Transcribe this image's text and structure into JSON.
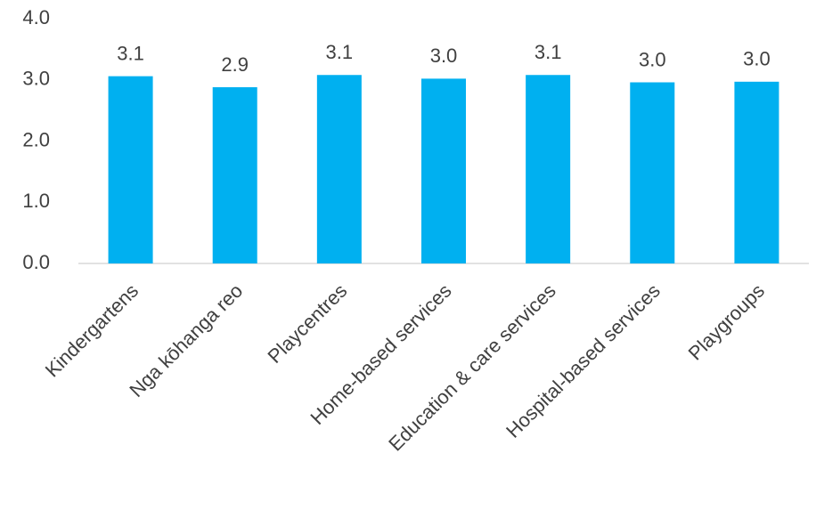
{
  "chart_data": {
    "type": "bar",
    "categories": [
      "Kindergartens",
      "Nga kōhanga reo",
      "Playcentres",
      "Home-based services",
      "Education & care services",
      "Hospital-based services",
      "Playgroups"
    ],
    "values": [
      3.06,
      2.88,
      3.08,
      3.02,
      3.08,
      2.96,
      2.97
    ],
    "value_labels": [
      "3.1",
      "2.9",
      "3.1",
      "3.0",
      "3.1",
      "3.0",
      "3.0"
    ],
    "color": "#00b0f0",
    "ylim": [
      0,
      4
    ],
    "yticks": [
      {
        "value": 0,
        "label": "0.0"
      },
      {
        "value": 1,
        "label": "1.0"
      },
      {
        "value": 2,
        "label": "2.0"
      },
      {
        "value": 3,
        "label": "3.0"
      },
      {
        "value": 4,
        "label": "4.0"
      }
    ],
    "grid": false
  }
}
